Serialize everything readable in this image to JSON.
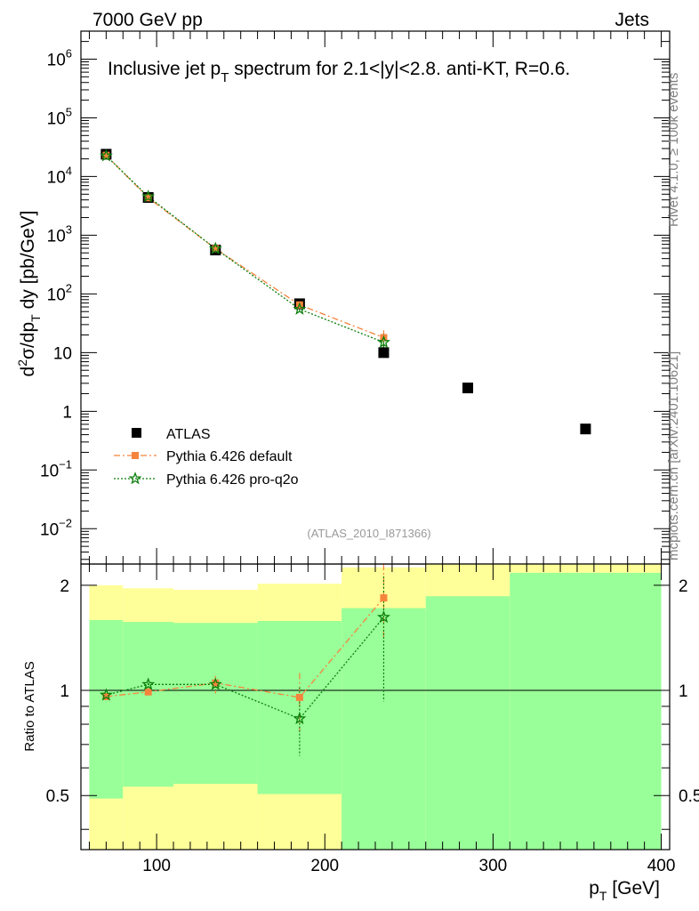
{
  "header": {
    "left": "7000 GeV pp",
    "right": "Jets"
  },
  "chart_data": [
    {
      "type": "scatter",
      "panel": "main",
      "title_parts": {
        "pre": "Inclusive jet p",
        "sub": "T",
        "post": " spectrum for 2.1<|y|<2.8.  anti-KT, R=0.6."
      },
      "ylabel_parts": {
        "a": "d",
        "b": "2",
        "c": "σ/dp",
        "d": "T",
        "e": " dy [pb/GeV]"
      },
      "yscale": "log",
      "xlim": [
        55,
        405
      ],
      "ylim": [
        0.0025,
        3000000
      ],
      "yticks": [
        {
          "value": 1000000,
          "base": "10",
          "exp": "6"
        },
        {
          "value": 100000,
          "base": "10",
          "exp": "5"
        },
        {
          "value": 10000,
          "base": "10",
          "exp": "4"
        },
        {
          "value": 1000,
          "base": "10",
          "exp": "3"
        },
        {
          "value": 100,
          "base": "10",
          "exp": "2"
        },
        {
          "value": 10,
          "base": "10",
          "exp": ""
        },
        {
          "value": 1,
          "base": "1",
          "exp": ""
        },
        {
          "value": 0.1,
          "base": "10",
          "exp": "−1"
        },
        {
          "value": 0.01,
          "base": "10",
          "exp": "−2"
        }
      ],
      "series": [
        {
          "name": "ATLAS",
          "marker": "square",
          "color": "#000000",
          "x": [
            70,
            95,
            135,
            185,
            235,
            285,
            355
          ],
          "y": [
            24000,
            4400,
            560,
            68,
            10,
            2.5,
            0.5
          ]
        },
        {
          "name": "Pythia 6.426 default",
          "marker": "square",
          "color": "#f5843c",
          "line": "dashdot",
          "x": [
            70,
            95,
            135,
            185,
            235
          ],
          "y": [
            23000,
            4350,
            590,
            65,
            18
          ],
          "yerr": [
            500,
            100,
            20,
            5,
            6
          ]
        },
        {
          "name": "Pythia 6.426 pro-q2o",
          "marker": "star",
          "color": "#0a7f0a",
          "line": "dotted",
          "x": [
            70,
            95,
            135,
            185,
            235
          ],
          "y": [
            22500,
            4550,
            590,
            55,
            15
          ],
          "yerr": [
            500,
            100,
            20,
            5,
            6
          ]
        }
      ],
      "annotation": "(ATLAS_2010_I871366)"
    },
    {
      "type": "scatter",
      "panel": "ratio",
      "ylabel": "Ratio to ATLAS",
      "xlabel_parts": {
        "a": "p",
        "b": "T",
        "c": " [GeV]"
      },
      "yscale": "log",
      "ylim": [
        0.35,
        2.3
      ],
      "xticks": [
        "100",
        "200",
        "300",
        "400"
      ],
      "yticks": [
        "0.5",
        "1",
        "2"
      ],
      "bands": {
        "edges": [
          60,
          80,
          110,
          160,
          210,
          260,
          310,
          400
        ],
        "yellow_lo": [
          0.0,
          0.0,
          0.0,
          0.0,
          0.0,
          0.0,
          0.0
        ],
        "yellow_hi": [
          2.0,
          1.96,
          1.94,
          2.02,
          2.25,
          2.45,
          2.6
        ],
        "green_lo": [
          0.49,
          0.53,
          0.54,
          0.505,
          0.0,
          0.0,
          0.0
        ],
        "green_hi": [
          1.59,
          1.57,
          1.56,
          1.58,
          1.72,
          1.86,
          2.17
        ]
      },
      "reference": 1,
      "series": [
        {
          "name": "Pythia 6.426 default",
          "color": "#f5843c",
          "marker": "square",
          "line": "dashdot",
          "x": [
            70,
            95,
            135,
            185,
            235
          ],
          "y": [
            0.96,
            0.99,
            1.05,
            0.955,
            1.84
          ],
          "ylo": [
            0.95,
            0.98,
            0.98,
            0.76,
            1.4
          ],
          "yhi": [
            0.97,
            1.0,
            1.1,
            1.12,
            2.35
          ]
        },
        {
          "name": "Pythia 6.426 pro-q2o",
          "color": "#0a7f0a",
          "marker": "star",
          "line": "dotted",
          "x": [
            70,
            95,
            135,
            185,
            235
          ],
          "y": [
            0.97,
            1.04,
            1.04,
            0.83,
            1.62
          ],
          "ylo": [
            0.96,
            1.03,
            1.0,
            0.65,
            0.93
          ],
          "yhi": [
            0.98,
            1.05,
            1.08,
            1.02,
            2.12
          ]
        }
      ]
    }
  ],
  "side_labels": {
    "rivet": "Rivet 4.1.0, ≥ 100k events",
    "mcplots": "mcplots.cern.ch [arXiv:2401.10621]"
  }
}
